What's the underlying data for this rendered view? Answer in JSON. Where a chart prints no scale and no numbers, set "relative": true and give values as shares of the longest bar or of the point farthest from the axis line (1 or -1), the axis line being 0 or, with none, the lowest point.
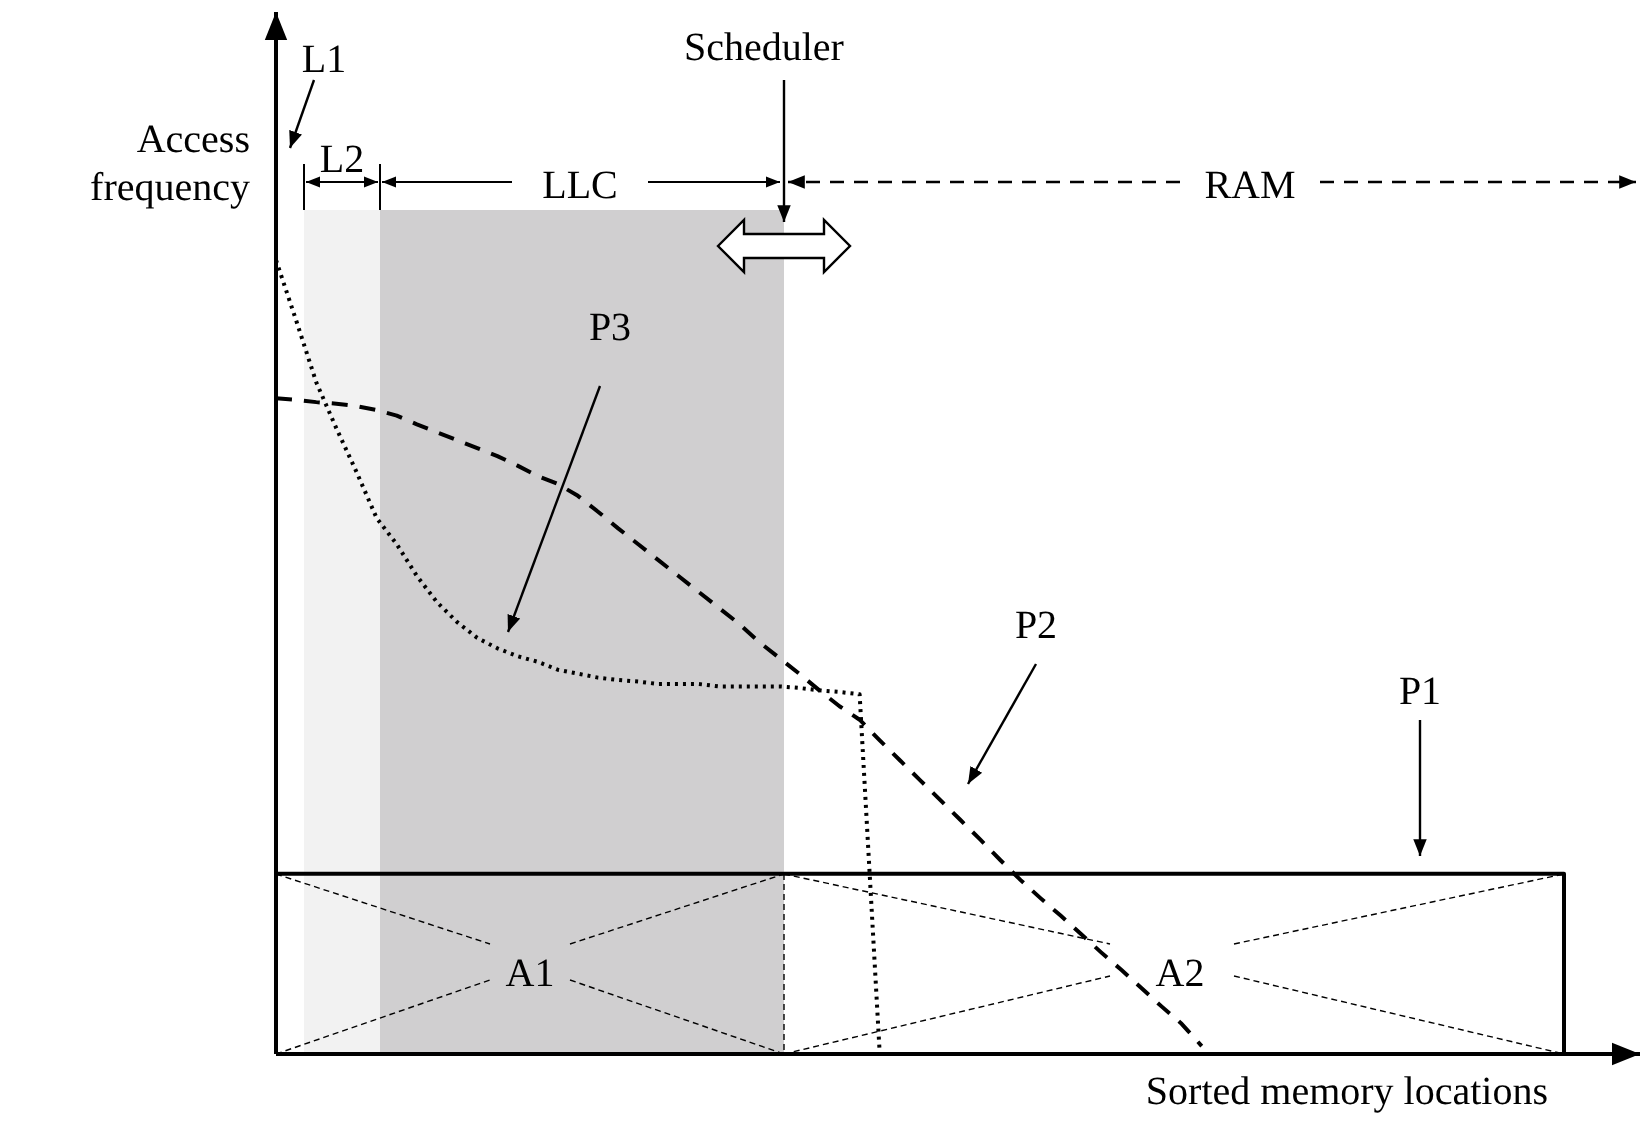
{
  "chart_data": {
    "type": "line",
    "relative": true,
    "xlabel": "Sorted memory locations",
    "ylabel": "Access frequency",
    "marker": "none",
    "categories": [
      null,
      null,
      null,
      null,
      null,
      null,
      null,
      null,
      null,
      null,
      null,
      null,
      null,
      null,
      null,
      null,
      null,
      null,
      null,
      null,
      null,
      null,
      null,
      null,
      null,
      null,
      null,
      null,
      null,
      null,
      null,
      null,
      null,
      null,
      null,
      null,
      null,
      null,
      null,
      null,
      null,
      null,
      null,
      null,
      null,
      null,
      null,
      null,
      null,
      null,
      null,
      null,
      null,
      null,
      null,
      null,
      null,
      null,
      null,
      null,
      null,
      null,
      null,
      null,
      null,
      null,
      null,
      null
    ],
    "series": [
      {
        "type": "step",
        "line_style": "solid",
        "color": "#000000",
        "values": [
          0.227,
          0.227,
          0.227,
          0.227,
          0.227,
          0.227,
          0.227,
          0.227,
          0.227,
          0.227,
          0.227,
          0.227,
          0.227,
          0.227,
          0.227,
          0.227,
          0.227,
          0.227,
          0.227,
          0.227,
          0.227,
          0.227,
          0.227,
          0.227,
          0.227,
          0.227,
          0.227,
          0.227,
          0.227,
          0.227,
          0.227,
          0.227,
          0.227,
          0.227,
          0.227,
          0.227,
          0.227,
          0.227,
          0.227,
          0.227,
          0.227,
          0.227,
          0.227,
          0.227,
          0.227,
          0.227,
          0.227,
          0.227,
          0.227,
          0.227,
          0.227,
          0.227,
          0.227,
          0.227,
          0.227,
          0.227,
          0.227,
          0.227,
          0.227,
          0.227,
          0.227,
          0.227,
          0.227,
          0.227,
          0,
          null,
          null,
          null
        ]
      },
      {
        "line_style": "dashed",
        "color": "#000000",
        "values": [
          0.826,
          0.824,
          0.821,
          0.819,
          0.816,
          0.811,
          0.804,
          0.793,
          0.783,
          0.773,
          0.763,
          0.753,
          0.741,
          0.728,
          0.718,
          0.703,
          0.683,
          0.662,
          0.642,
          0.622,
          0.602,
          0.582,
          0.562,
          0.542,
          0.519,
          0.499,
          0.479,
          0.458,
          0.438,
          0.421,
          0.395,
          0.37,
          0.345,
          0.32,
          0.295,
          0.27,
          0.244,
          0.219,
          0.196,
          0.174,
          0.151,
          0.128,
          0.106,
          0.083,
          0.06,
          0.038,
          0.01,
          null,
          null,
          null,
          null,
          null,
          null,
          null,
          null,
          null,
          null,
          null,
          null,
          null,
          null,
          null,
          null,
          null,
          null,
          null,
          null,
          null
        ]
      },
      {
        "line_style": "dotted",
        "color": "#000000",
        "values": [
          1,
          0.924,
          0.846,
          0.788,
          0.733,
          0.675,
          0.642,
          0.602,
          0.569,
          0.544,
          0.524,
          0.511,
          0.501,
          0.494,
          0.484,
          0.479,
          0.474,
          0.471,
          0.469,
          0.466,
          0.466,
          0.466,
          0.463,
          0.463,
          0.463,
          0.463,
          0.461,
          0.458,
          0.456,
          0.453,
          0,
          null,
          null,
          null,
          null,
          null,
          null,
          null,
          null,
          null,
          null,
          null,
          null,
          null,
          null,
          null,
          null,
          null,
          null,
          null,
          null,
          null,
          null,
          null,
          null,
          null,
          null,
          null,
          null,
          null,
          null,
          null,
          null,
          null,
          null,
          null,
          null,
          null
        ]
      }
    ],
    "annotations": [
      "L1",
      "L2",
      "LLC",
      "Scheduler",
      "RAM",
      "P3",
      "P2",
      "P1",
      "A1",
      "A2"
    ]
  }
}
